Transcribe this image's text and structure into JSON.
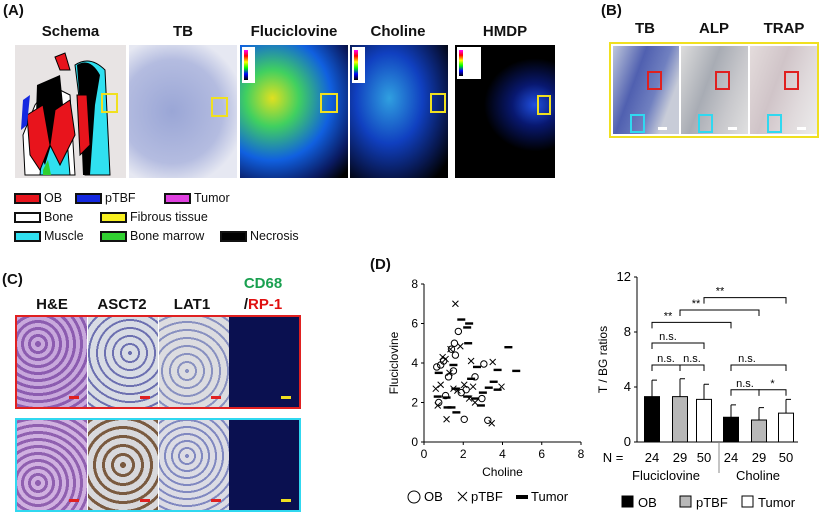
{
  "panel_a": {
    "label": "(A)",
    "columns": [
      "Schema",
      "TB",
      "Fluciclovine",
      "Choline",
      "HMDP"
    ],
    "legend": [
      {
        "label": "OB",
        "color": "#e8141c"
      },
      {
        "label": "pTBF",
        "color": "#1428e0"
      },
      {
        "label": "Tumor",
        "color": "#e040e0"
      },
      {
        "label": "Bone",
        "color": "#ffffff"
      },
      {
        "label": "Fibrous tissue",
        "color": "#f8f020"
      },
      {
        "label": "Muscle",
        "color": "#30e0f0"
      },
      {
        "label": "Bone marrow",
        "color": "#30d030"
      },
      {
        "label": "Necrosis",
        "color": "#000000"
      }
    ]
  },
  "panel_b": {
    "label": "(B)",
    "columns": [
      "TB",
      "ALP",
      "TRAP"
    ]
  },
  "panel_c": {
    "label": "(C)",
    "columns": [
      "H&E",
      "ASCT2",
      "LAT1"
    ],
    "col4_line1": "CD68",
    "col4_line2_prefix": "/",
    "col4_line2": "RP-1",
    "colors": {
      "cd68": "#1aa050",
      "rp1": "#e01010",
      "row1_border": "#e02020",
      "row2_border": "#30d8f0"
    }
  },
  "panel_d": {
    "label": "(D)"
  },
  "chart_data": [
    {
      "type": "scatter",
      "xlabel": "Choline",
      "ylabel": "Fluciclovine",
      "xlim": [
        0,
        8
      ],
      "ylim": [
        0,
        8
      ],
      "xticks": [
        "0",
        "2",
        "4",
        "6",
        "8"
      ],
      "yticks": [
        "0",
        "2",
        "4",
        "6",
        "8"
      ],
      "legend_position": "bottom",
      "series": [
        {
          "name": "OB",
          "marker": "circle",
          "points": [
            [
              0.65,
              3.8
            ],
            [
              0.75,
              2.0
            ],
            [
              1.1,
              2.35
            ],
            [
              1.25,
              3.3
            ],
            [
              1.5,
              3.6
            ],
            [
              1.55,
              5.0
            ],
            [
              1.75,
              5.6
            ],
            [
              1.6,
              4.4
            ],
            [
              1.4,
              4.7
            ],
            [
              1.9,
              2.5
            ],
            [
              2.15,
              2.65
            ],
            [
              2.6,
              3.3
            ],
            [
              2.95,
              2.2
            ],
            [
              3.05,
              3.95
            ],
            [
              3.25,
              1.1
            ],
            [
              2.05,
              1.15
            ],
            [
              0.85,
              3.9
            ],
            [
              1.0,
              4.1
            ]
          ]
        },
        {
          "name": "pTBF",
          "marker": "x",
          "points": [
            [
              1.6,
              7.0
            ],
            [
              1.85,
              4.85
            ],
            [
              1.35,
              4.7
            ],
            [
              2.4,
              4.1
            ],
            [
              3.5,
              4.05
            ],
            [
              3.95,
              2.8
            ],
            [
              3.45,
              0.95
            ],
            [
              1.15,
              1.15
            ],
            [
              0.7,
              1.85
            ],
            [
              0.6,
              2.7
            ],
            [
              0.85,
              2.9
            ],
            [
              1.3,
              3.5
            ],
            [
              1.5,
              2.7
            ],
            [
              2.05,
              2.9
            ],
            [
              2.5,
              2.8
            ],
            [
              2.6,
              2.0
            ],
            [
              0.95,
              4.3
            ],
            [
              1.1,
              4.2
            ],
            [
              1.7,
              2.6
            ],
            [
              2.3,
              2.2
            ]
          ]
        },
        {
          "name": "Tumor",
          "marker": "dash",
          "points": [
            [
              1.9,
              6.2
            ],
            [
              2.3,
              6.0
            ],
            [
              2.2,
              5.8
            ],
            [
              2.25,
              5.0
            ],
            [
              4.3,
              4.8
            ],
            [
              4.7,
              3.6
            ],
            [
              3.75,
              3.65
            ],
            [
              2.7,
              3.8
            ],
            [
              2.4,
              3.2
            ],
            [
              3.0,
              2.5
            ],
            [
              3.3,
              2.75
            ],
            [
              3.55,
              3.05
            ],
            [
              3.75,
              2.65
            ],
            [
              2.9,
              1.85
            ],
            [
              2.2,
              2.3
            ],
            [
              1.6,
              2.7
            ],
            [
              1.4,
              1.75
            ],
            [
              1.65,
              1.5
            ],
            [
              1.2,
              1.75
            ],
            [
              1.15,
              2.25
            ],
            [
              0.75,
              3.5
            ],
            [
              0.7,
              2.3
            ],
            [
              1.5,
              3.9
            ],
            [
              2.6,
              2.2
            ]
          ]
        }
      ]
    },
    {
      "type": "bar",
      "ylabel": "T / BG ratios",
      "ylim": [
        0,
        12
      ],
      "yticks": [
        "0",
        "4",
        "8",
        "12"
      ],
      "n_prefix": "N = ",
      "groups": [
        "Fluciclovine",
        "Choline"
      ],
      "legend_position": "bottom",
      "series": [
        {
          "name": "OB",
          "color": "#000000"
        },
        {
          "name": "pTBF",
          "color": "#b8b8b8"
        },
        {
          "name": "Tumor",
          "color": "#ffffff"
        }
      ],
      "bars": [
        {
          "group": "Fluciclovine",
          "series": "OB",
          "n": "24",
          "value": 3.3,
          "error": 1.2
        },
        {
          "group": "Fluciclovine",
          "series": "pTBF",
          "n": "29",
          "value": 3.3,
          "error": 1.3
        },
        {
          "group": "Fluciclovine",
          "series": "Tumor",
          "n": "50",
          "value": 3.1,
          "error": 1.1
        },
        {
          "group": "Choline",
          "series": "OB",
          "n": "24",
          "value": 1.8,
          "error": 0.9
        },
        {
          "group": "Choline",
          "series": "pTBF",
          "n": "29",
          "value": 1.6,
          "error": 0.9
        },
        {
          "group": "Choline",
          "series": "Tumor",
          "n": "50",
          "value": 2.1,
          "error": 1.0
        }
      ],
      "significance": [
        {
          "from": 0,
          "to": 1,
          "level": 5.6,
          "label": "n.s."
        },
        {
          "from": 1,
          "to": 2,
          "level": 5.6,
          "label": "n.s."
        },
        {
          "from": 0,
          "to": 2,
          "level": 7.2,
          "label": "n.s."
        },
        {
          "from": 0,
          "to": 3,
          "level": 8.7,
          "label": "**"
        },
        {
          "from": 1,
          "to": 4,
          "level": 9.6,
          "label": "**"
        },
        {
          "from": 2,
          "to": 5,
          "level": 10.5,
          "label": "**"
        },
        {
          "from": 3,
          "to": 4,
          "level": 3.8,
          "label": "n.s."
        },
        {
          "from": 4,
          "to": 5,
          "level": 3.8,
          "label": "*"
        },
        {
          "from": 3,
          "to": 5,
          "level": 5.6,
          "label": "n.s."
        }
      ]
    }
  ]
}
